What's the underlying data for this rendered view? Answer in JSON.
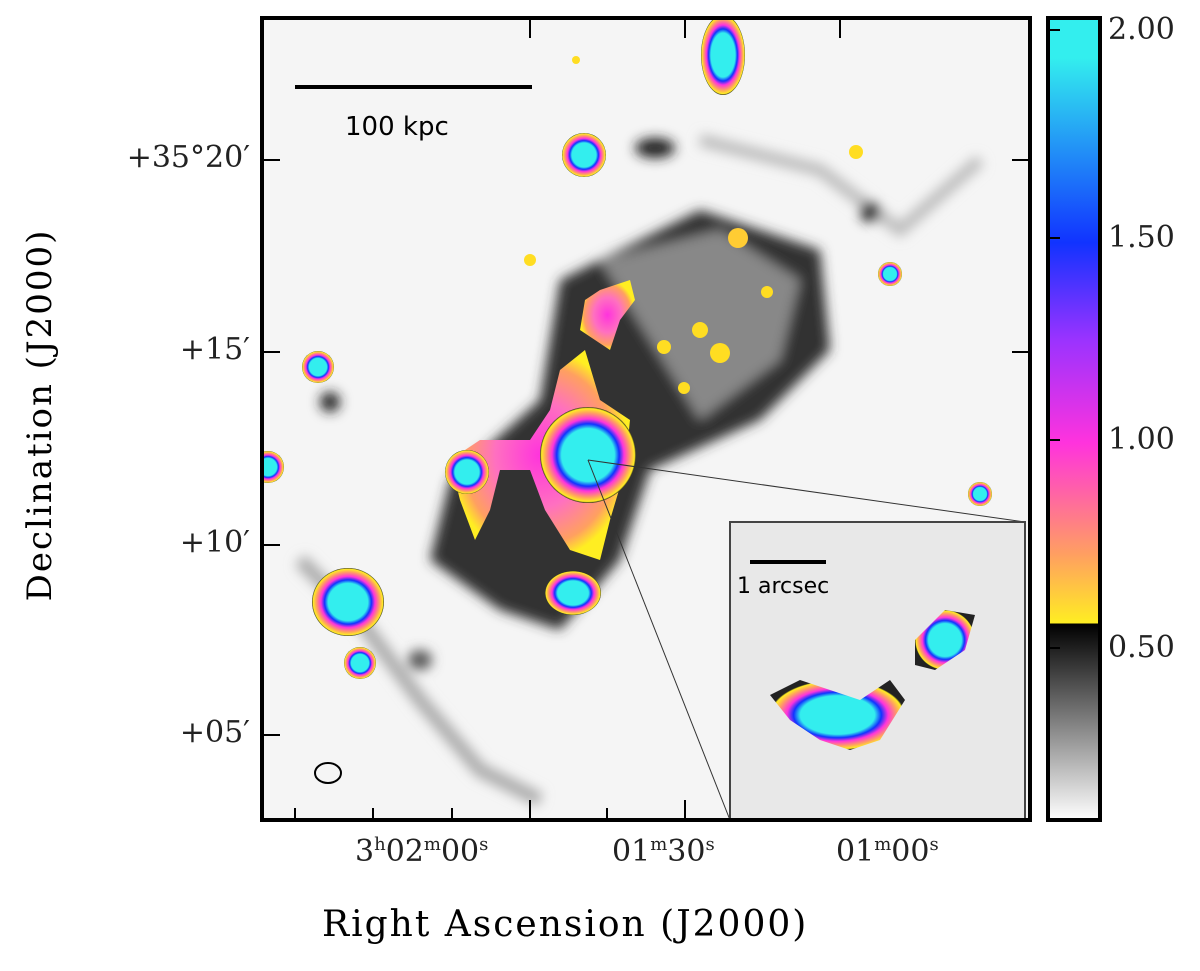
{
  "chart_data": {
    "type": "heatmap",
    "xlabel": "Right Ascension (J2000)",
    "ylabel": "Declination (J2000)",
    "x_ticks": [
      {
        "h": "3",
        "hs": "h",
        "m": "02",
        "ms": "m",
        "s": "00",
        "ss": "s"
      },
      {
        "m": "01",
        "ms": "m",
        "s": "30",
        "ss": "s"
      },
      {
        "m": "01",
        "ms": "m",
        "s": "00",
        "ss": "s"
      }
    ],
    "y_ticks": [
      "+35°20′",
      "+15′",
      "+10′",
      "+05′"
    ],
    "colorbar": {
      "ticks": [
        "2.00",
        "1.50",
        "1.00",
        "0.50"
      ],
      "range": [
        0.05,
        2.0
      ],
      "colors": {
        "low": "#ffffff",
        "mid_dark": "#000000",
        "yellow": "#ffee22",
        "orange": "#ffa060",
        "pink": "#ff33dd",
        "blue": "#1133ff",
        "cyan": "#33eeee"
      }
    },
    "scale_bar": "100 kpc",
    "inset_scale_bar": "1 arcsec"
  }
}
